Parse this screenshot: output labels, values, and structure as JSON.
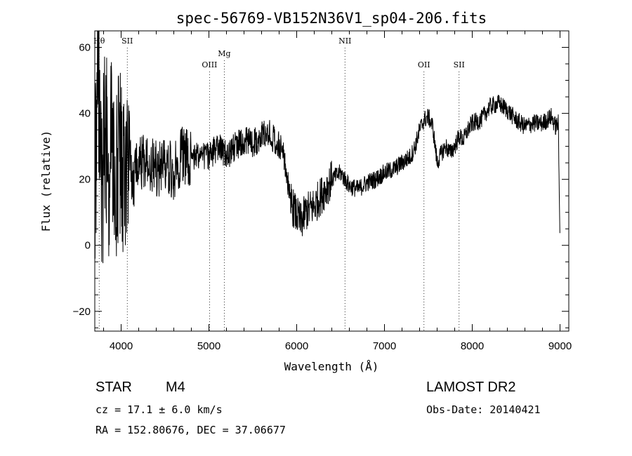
{
  "chart_data": {
    "type": "line",
    "title": "spec-56769-VB152N36V1_sp04-206.fits",
    "xlabel": "Wavelength (Å)",
    "ylabel": "Flux (relative)",
    "xlim": [
      3700,
      9100
    ],
    "ylim": [
      -26,
      65
    ],
    "x_ticks": [
      4000,
      5000,
      6000,
      7000,
      8000,
      9000
    ],
    "y_ticks": [
      -20,
      0,
      20,
      40,
      60
    ],
    "grid": false,
    "lines": [
      {
        "label": "Hθ",
        "x": 3750,
        "tier": "top"
      },
      {
        "label": "SII",
        "x": 4070,
        "tier": "top"
      },
      {
        "label": "OIII",
        "x": 5007,
        "tier": "low"
      },
      {
        "label": "Mg",
        "x": 5175,
        "tier": "mid"
      },
      {
        "label": "NII",
        "x": 6550,
        "tier": "top"
      },
      {
        "label": "OII",
        "x": 7450,
        "tier": "low"
      },
      {
        "label": "SII",
        "x": 7850,
        "tier": "low"
      }
    ],
    "series": [
      {
        "name": "spectrum",
        "x": [
          3700,
          3740,
          3780,
          3820,
          3860,
          3900,
          3940,
          3980,
          4020,
          4060,
          4100,
          4150,
          4200,
          4300,
          4400,
          4500,
          4600,
          4700,
          4800,
          4900,
          5000,
          5100,
          5200,
          5300,
          5400,
          5500,
          5600,
          5700,
          5800,
          5850,
          5900,
          5950,
          6000,
          6050,
          6100,
          6200,
          6300,
          6400,
          6500,
          6550,
          6600,
          6700,
          6800,
          6900,
          7000,
          7100,
          7200,
          7300,
          7350,
          7400,
          7450,
          7500,
          7550,
          7600,
          7650,
          7700,
          7750,
          7800,
          7850,
          7900,
          7950,
          8000,
          8100,
          8200,
          8300,
          8400,
          8500,
          8600,
          8700,
          8800,
          8900,
          8950,
          8980,
          9000
        ],
        "y": [
          15,
          55,
          10,
          40,
          20,
          35,
          22,
          30,
          18,
          28,
          24,
          20,
          26,
          24,
          23,
          25,
          22,
          28,
          26,
          28,
          27,
          30,
          27,
          30,
          32,
          31,
          33,
          34,
          30,
          28,
          18,
          12,
          9,
          7,
          10,
          12,
          16,
          20,
          22,
          20,
          18,
          17,
          19,
          20,
          22,
          23,
          25,
          27,
          30,
          35,
          38,
          39,
          36,
          25,
          28,
          30,
          28,
          30,
          33,
          32,
          35,
          37,
          38,
          42,
          43,
          41,
          38,
          36,
          37,
          37,
          39,
          36,
          37,
          0
        ]
      }
    ]
  },
  "footer": {
    "object_type": "STAR",
    "subclass": "M4",
    "survey": "LAMOST DR2",
    "redshift": "cz = 17.1 ± 6.0 km/s",
    "obs_date": "Obs-Date: 20140421",
    "coords": "RA = 152.80676, DEC =  37.06677"
  },
  "colors": {
    "ink": "#000000",
    "background": "#ffffff"
  }
}
